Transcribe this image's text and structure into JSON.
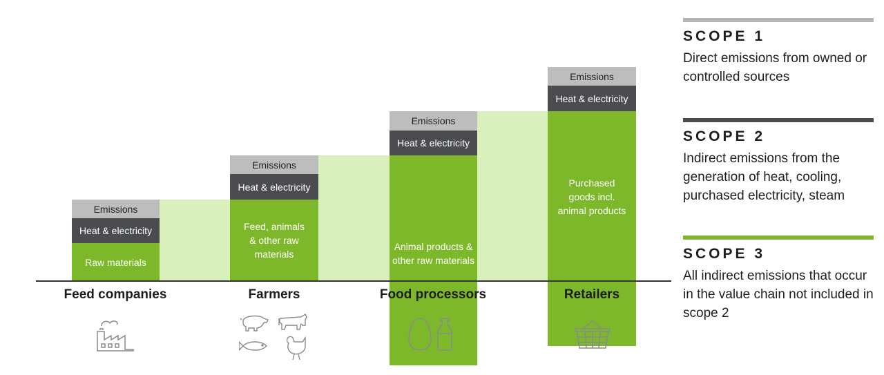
{
  "diagram": {
    "stages": [
      {
        "label": "Feed companies",
        "emissions_label": "Emissions",
        "heat_label": "Heat & electricity",
        "scope3_label": "Raw materials",
        "icon": "factory-icon"
      },
      {
        "label": "Farmers",
        "emissions_label": "Emissions",
        "heat_label": "Heat & electricity",
        "scope3_label": "Feed, animals & other raw materials",
        "icon": "farm-animals-icon"
      },
      {
        "label": "Food processors",
        "emissions_label": "Emissions",
        "heat_label": "Heat & electricity",
        "scope3_label": "Animal products & other raw materials",
        "icon": "egg-milk-icon"
      },
      {
        "label": "Retailers",
        "emissions_label": "Emissions",
        "heat_label": "Heat & electricity",
        "scope3_label": "Purchased goods incl. animal products",
        "icon": "basket-icon"
      }
    ]
  },
  "legend": {
    "scopes": [
      {
        "title": "SCOPE 1",
        "description": "Direct emissions from owned or controlled sources",
        "color": "#b4b4b4"
      },
      {
        "title": "SCOPE 2",
        "description": "Indirect emissions from the generation of heat, cooling, purchased electricity, steam",
        "color": "#4a4c50"
      },
      {
        "title": "SCOPE 3",
        "description": "All indirect emissions that occur in the value chain not included in scope 2",
        "color": "#7cb82a"
      }
    ]
  },
  "colors": {
    "scope1": "#bdbdbd",
    "scope2": "#4a4c50",
    "scope3": "#7cb82a",
    "connector": "#d9efbc"
  }
}
